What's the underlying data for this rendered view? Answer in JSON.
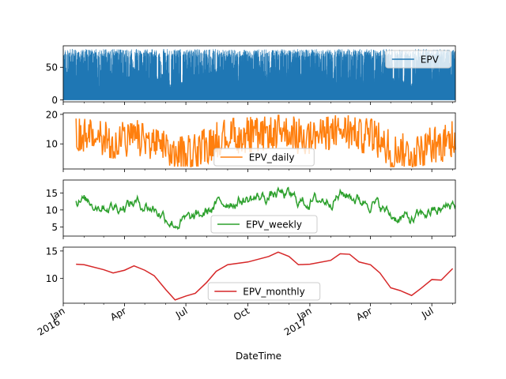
{
  "chart_data": [
    {
      "type": "area",
      "series": [
        {
          "name": "EPV",
          "color": "#1f77b4"
        }
      ],
      "ylim": [
        -3,
        83
      ],
      "yticks": [
        0,
        50
      ],
      "legend_loc": "upper right",
      "baseline_range": [
        20,
        78
      ],
      "dips": [
        {
          "date": "2016-04-15",
          "value": 45
        },
        {
          "date": "2016-05-20",
          "value": 30
        },
        {
          "date": "2016-05-27",
          "value": 35
        },
        {
          "date": "2016-06-08",
          "value": 18
        },
        {
          "date": "2016-06-25",
          "value": 22
        },
        {
          "date": "2016-08-15",
          "value": 42
        },
        {
          "date": "2017-05-05",
          "value": 28
        },
        {
          "date": "2017-05-20",
          "value": 25
        },
        {
          "date": "2017-06-01",
          "value": 20
        }
      ]
    },
    {
      "type": "line",
      "series": [
        {
          "name": "EPV_daily",
          "color": "#ff7f0e"
        }
      ],
      "ylim": [
        1.5,
        20.5
      ],
      "yticks": [
        10,
        20
      ],
      "legend_loc": "lower center",
      "smoothness": "daily",
      "monthly_trend": [
        [
          "2016-01-20",
          12.6
        ],
        [
          "2016-02-01",
          12.5
        ],
        [
          "2016-03-01",
          11.6
        ],
        [
          "2016-03-15",
          11.0
        ],
        [
          "2016-04-01",
          11.5
        ],
        [
          "2016-04-15",
          12.3
        ],
        [
          "2016-05-01",
          11.5
        ],
        [
          "2016-05-15",
          10.5
        ],
        [
          "2016-06-01",
          8.0
        ],
        [
          "2016-06-15",
          6.1
        ],
        [
          "2016-07-01",
          6.8
        ],
        [
          "2016-07-15",
          7.3
        ],
        [
          "2016-08-01",
          9.3
        ],
        [
          "2016-08-15",
          11.3
        ],
        [
          "2016-09-01",
          12.5
        ],
        [
          "2016-10-01",
          13.0
        ],
        [
          "2016-11-01",
          14.0
        ],
        [
          "2016-11-15",
          14.8
        ],
        [
          "2016-12-01",
          14.0
        ],
        [
          "2016-12-15",
          12.5
        ],
        [
          "2017-01-01",
          12.6
        ],
        [
          "2017-02-01",
          13.3
        ],
        [
          "2017-02-15",
          14.5
        ],
        [
          "2017-03-01",
          14.4
        ],
        [
          "2017-03-15",
          13.0
        ],
        [
          "2017-04-01",
          12.5
        ],
        [
          "2017-04-15",
          11.0
        ],
        [
          "2017-05-01",
          8.3
        ],
        [
          "2017-05-15",
          7.8
        ],
        [
          "2017-06-01",
          6.9
        ],
        [
          "2017-06-15",
          8.2
        ],
        [
          "2017-07-01",
          9.8
        ],
        [
          "2017-07-15",
          9.7
        ],
        [
          "2017-08-01",
          11.8
        ]
      ]
    },
    {
      "type": "line",
      "series": [
        {
          "name": "EPV_weekly",
          "color": "#2ca02c"
        }
      ],
      "ylim": [
        2.3,
        18.8
      ],
      "yticks": [
        5,
        10,
        15
      ],
      "legend_loc": "lower center",
      "smoothness": "weekly",
      "monthly_trend": [
        [
          "2016-01-20",
          12.6
        ],
        [
          "2016-02-01",
          12.5
        ],
        [
          "2016-03-01",
          11.6
        ],
        [
          "2016-03-15",
          11.0
        ],
        [
          "2016-04-01",
          11.5
        ],
        [
          "2016-04-15",
          12.3
        ],
        [
          "2016-05-01",
          11.5
        ],
        [
          "2016-05-15",
          10.5
        ],
        [
          "2016-06-01",
          8.0
        ],
        [
          "2016-06-15",
          6.1
        ],
        [
          "2016-07-01",
          6.8
        ],
        [
          "2016-07-15",
          7.3
        ],
        [
          "2016-08-01",
          9.3
        ],
        [
          "2016-08-15",
          11.3
        ],
        [
          "2016-09-01",
          12.5
        ],
        [
          "2016-10-01",
          13.0
        ],
        [
          "2016-11-01",
          14.0
        ],
        [
          "2016-11-15",
          14.8
        ],
        [
          "2016-12-01",
          14.0
        ],
        [
          "2016-12-15",
          12.5
        ],
        [
          "2017-01-01",
          12.6
        ],
        [
          "2017-02-01",
          13.3
        ],
        [
          "2017-02-15",
          14.5
        ],
        [
          "2017-03-01",
          14.4
        ],
        [
          "2017-03-15",
          13.0
        ],
        [
          "2017-04-01",
          12.5
        ],
        [
          "2017-04-15",
          11.0
        ],
        [
          "2017-05-01",
          8.3
        ],
        [
          "2017-05-15",
          7.8
        ],
        [
          "2017-06-01",
          6.9
        ],
        [
          "2017-06-15",
          8.2
        ],
        [
          "2017-07-01",
          9.8
        ],
        [
          "2017-07-15",
          9.7
        ],
        [
          "2017-08-01",
          11.8
        ]
      ]
    },
    {
      "type": "line",
      "series": [
        {
          "name": "EPV_monthly",
          "color": "#d62728"
        }
      ],
      "ylim": [
        5.5,
        15.7
      ],
      "yticks": [
        10,
        15
      ],
      "legend_loc": "lower center",
      "x": [
        "2016-01-20",
        "2016-02-01",
        "2016-03-01",
        "2016-03-15",
        "2016-04-01",
        "2016-04-15",
        "2016-05-01",
        "2016-05-15",
        "2016-06-01",
        "2016-06-15",
        "2016-07-01",
        "2016-07-15",
        "2016-08-01",
        "2016-08-15",
        "2016-09-01",
        "2016-10-01",
        "2016-11-01",
        "2016-11-15",
        "2016-12-01",
        "2016-12-15",
        "2017-01-01",
        "2017-02-01",
        "2017-02-15",
        "2017-03-01",
        "2017-03-15",
        "2017-04-01",
        "2017-04-15",
        "2017-05-01",
        "2017-05-15",
        "2017-06-01",
        "2017-06-15",
        "2017-07-01",
        "2017-07-15",
        "2017-08-01"
      ],
      "values": [
        12.6,
        12.5,
        11.6,
        11.0,
        11.5,
        12.3,
        11.5,
        10.5,
        8.0,
        6.1,
        6.8,
        7.3,
        9.3,
        11.3,
        12.5,
        13.0,
        14.0,
        14.8,
        14.0,
        12.5,
        12.6,
        13.3,
        14.5,
        14.4,
        13.0,
        12.5,
        11.0,
        8.3,
        7.8,
        6.9,
        8.2,
        9.8,
        9.7,
        11.8
      ]
    }
  ],
  "x_axis": {
    "label": "DateTime",
    "range": [
      "2016-01-01",
      "2017-08-05"
    ],
    "major_ticks": [
      {
        "date": "2016-01-01",
        "label": "Jan",
        "year": "2016"
      },
      {
        "date": "2016-04-01",
        "label": "Apr",
        "year": ""
      },
      {
        "date": "2016-07-01",
        "label": "Jul",
        "year": ""
      },
      {
        "date": "2016-10-01",
        "label": "Oct",
        "year": ""
      },
      {
        "date": "2017-01-01",
        "label": "Jan",
        "year": "2017"
      },
      {
        "date": "2017-04-01",
        "label": "Apr",
        "year": ""
      },
      {
        "date": "2017-07-01",
        "label": "Jul",
        "year": ""
      }
    ],
    "minor_ticks": [
      "2016-02-01",
      "2016-03-01",
      "2016-05-01",
      "2016-06-01",
      "2016-08-01",
      "2016-09-01",
      "2016-11-01",
      "2016-12-01",
      "2017-02-01",
      "2017-03-01",
      "2017-05-01",
      "2017-06-01",
      "2017-08-01"
    ]
  }
}
